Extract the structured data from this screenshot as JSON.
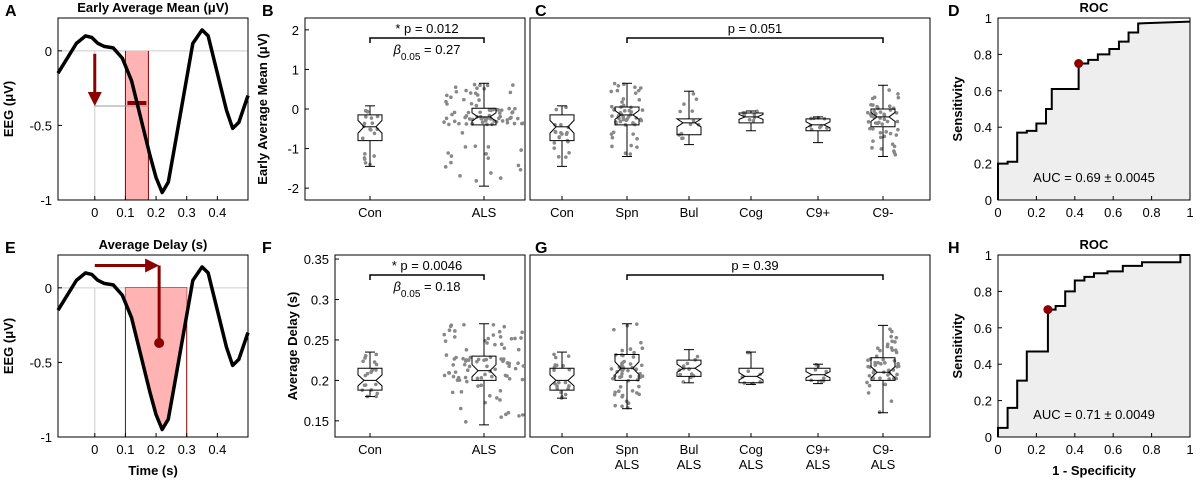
{
  "colors": {
    "wave": "#000000",
    "accent": "#8b0000",
    "fill": "#ffb3b3",
    "dots": "#888888",
    "rocFill": "#eeeeee"
  },
  "chart_data": [
    {
      "panel": "A",
      "type": "line",
      "title": "Early Average Mean (μV)",
      "ylabel": "EEG (μV)",
      "xlabel": "",
      "xlim": [
        -0.12,
        0.5
      ],
      "ylim": [
        -1,
        0.22
      ],
      "xticks": [
        "0",
        "0.1",
        "0.2",
        "0.3",
        "0.4"
      ],
      "yticks": [
        "0",
        "-0.5",
        "-1"
      ],
      "x": [
        -0.12,
        -0.09,
        -0.06,
        -0.03,
        -0.01,
        0.01,
        0.03,
        0.06,
        0.09,
        0.12,
        0.15,
        0.18,
        0.2,
        0.22,
        0.24,
        0.26,
        0.29,
        0.32,
        0.35,
        0.37,
        0.4,
        0.43,
        0.45,
        0.47,
        0.5
      ],
      "y": [
        -0.15,
        -0.05,
        0.05,
        0.1,
        0.09,
        0.05,
        0.03,
        0.02,
        -0.05,
        -0.2,
        -0.45,
        -0.7,
        -0.85,
        -0.95,
        -0.88,
        -0.65,
        -0.3,
        0.05,
        0.14,
        0.1,
        -0.15,
        -0.4,
        -0.52,
        -0.48,
        -0.3
      ],
      "window": [
        0.1,
        0.175
      ],
      "mean_level": -0.37
    },
    {
      "panel": "B",
      "type": "box",
      "ylabel": "Early Average Mean (μV)",
      "categories": [
        "Con",
        "ALS"
      ],
      "ylim": [
        -2.3,
        2.3
      ],
      "yticks": [
        "2",
        "1",
        "0",
        "-1",
        "-2"
      ],
      "boxes": [
        {
          "min": -1.45,
          "q1": -0.8,
          "med": -0.45,
          "q3": -0.15,
          "max": 0.08
        },
        {
          "min": -1.95,
          "q1": -0.4,
          "med": -0.2,
          "q3": 0.02,
          "max": 0.65
        }
      ],
      "annotation": {
        "text": "* p = 0.012",
        "beta": "β",
        "beta_sub": "0.05",
        "beta_val": " = 0.27"
      }
    },
    {
      "panel": "C",
      "type": "box",
      "categories": [
        "Con",
        "Spn",
        "Bul",
        "Cog",
        "C9+",
        "C9-"
      ],
      "ylim": [
        -2.3,
        2.3
      ],
      "boxes": [
        {
          "min": -1.45,
          "q1": -0.8,
          "med": -0.45,
          "q3": -0.15,
          "max": 0.08
        },
        {
          "min": -1.2,
          "q1": -0.4,
          "med": -0.15,
          "q3": 0.05,
          "max": 0.65
        },
        {
          "min": -0.9,
          "q1": -0.65,
          "med": -0.35,
          "q3": -0.25,
          "max": 0.45
        },
        {
          "min": -0.55,
          "q1": -0.35,
          "med": -0.2,
          "q3": -0.1,
          "max": -0.05
        },
        {
          "min": -0.85,
          "q1": -0.55,
          "med": -0.4,
          "q3": -0.25,
          "max": -0.2
        },
        {
          "min": -1.2,
          "q1": -0.45,
          "med": -0.2,
          "q3": 0.0,
          "max": 0.6
        }
      ],
      "annotation": {
        "text": "p = 0.051"
      }
    },
    {
      "panel": "D",
      "type": "line",
      "title": "ROC",
      "ylabel": "Sensitivity",
      "xlabel": "",
      "xlim": [
        0,
        1
      ],
      "ylim": [
        0,
        1
      ],
      "xticks": [
        "0",
        "0.2",
        "0.4",
        "0.6",
        "0.8",
        "1"
      ],
      "yticks": [
        "1",
        "0.8",
        "0.6",
        "0.4",
        "0.2",
        "0"
      ],
      "x": [
        0,
        0,
        0.05,
        0.05,
        0.1,
        0.1,
        0.15,
        0.15,
        0.2,
        0.2,
        0.25,
        0.25,
        0.28,
        0.28,
        0.32,
        0.32,
        0.42,
        0.42,
        0.47,
        0.47,
        0.52,
        0.52,
        0.58,
        0.58,
        0.63,
        0.63,
        0.68,
        0.68,
        0.73,
        0.73,
        1
      ],
      "y": [
        0,
        0.2,
        0.2,
        0.21,
        0.21,
        0.37,
        0.37,
        0.38,
        0.38,
        0.42,
        0.42,
        0.5,
        0.5,
        0.61,
        0.61,
        0.61,
        0.61,
        0.75,
        0.75,
        0.77,
        0.77,
        0.8,
        0.8,
        0.83,
        0.83,
        0.87,
        0.87,
        0.92,
        0.92,
        0.97,
        0.98
      ],
      "point": [
        0.42,
        0.75
      ],
      "auc": "AUC = 0.69 ± 0.0045"
    },
    {
      "panel": "E",
      "type": "line",
      "title": "Average Delay (s)",
      "ylabel": "EEG (μV)",
      "xlabel": "Time (s)",
      "xlim": [
        -0.12,
        0.5
      ],
      "ylim": [
        -1,
        0.22
      ],
      "xticks": [
        "0",
        "0.1",
        "0.2",
        "0.3",
        "0.4"
      ],
      "yticks": [
        "0",
        "-0.5",
        "-1"
      ],
      "window": [
        0.1,
        0.3
      ],
      "delay": 0.21
    },
    {
      "panel": "F",
      "type": "box",
      "ylabel": "Average Delay (s)",
      "categories": [
        "Con",
        "ALS"
      ],
      "ylim": [
        0.13,
        0.355
      ],
      "yticks": [
        "0.35",
        "0.3",
        "0.25",
        "0.2",
        "0.15"
      ],
      "boxes": [
        {
          "min": 0.18,
          "q1": 0.188,
          "med": 0.2,
          "q3": 0.215,
          "max": 0.235
        },
        {
          "min": 0.145,
          "q1": 0.2,
          "med": 0.212,
          "q3": 0.23,
          "max": 0.27
        }
      ],
      "annotation": {
        "text": "* p = 0.0046",
        "beta": "β",
        "beta_sub": "0.05",
        "beta_val": " = 0.18"
      }
    },
    {
      "panel": "G",
      "type": "box",
      "categories": [
        "Con",
        "Spn",
        "Bul",
        "Cog",
        "C9+",
        "C9-"
      ],
      "categories2": [
        "",
        "ALS",
        "ALS",
        "ALS",
        "ALS",
        "ALS"
      ],
      "ylim": [
        0.13,
        0.355
      ],
      "boxes": [
        {
          "min": 0.178,
          "q1": 0.188,
          "med": 0.2,
          "q3": 0.215,
          "max": 0.235
        },
        {
          "min": 0.165,
          "q1": 0.2,
          "med": 0.215,
          "q3": 0.232,
          "max": 0.27
        },
        {
          "min": 0.197,
          "q1": 0.205,
          "med": 0.215,
          "q3": 0.225,
          "max": 0.238
        },
        {
          "min": 0.195,
          "q1": 0.197,
          "med": 0.205,
          "q3": 0.215,
          "max": 0.235
        },
        {
          "min": 0.196,
          "q1": 0.2,
          "med": 0.207,
          "q3": 0.215,
          "max": 0.22
        },
        {
          "min": 0.16,
          "q1": 0.2,
          "med": 0.21,
          "q3": 0.228,
          "max": 0.268
        }
      ],
      "annotation": {
        "text": "p = 0.39"
      }
    },
    {
      "panel": "H",
      "type": "line",
      "title": "ROC",
      "ylabel": "Sensitivity",
      "xlabel": "1 - Specificity",
      "xlim": [
        0,
        1
      ],
      "ylim": [
        0,
        1
      ],
      "xticks": [
        "0",
        "0.2",
        "0.4",
        "0.6",
        "0.8",
        "1"
      ],
      "yticks": [
        "1",
        "0.8",
        "0.6",
        "0.4",
        "0.2",
        "0"
      ],
      "x": [
        0,
        0,
        0.05,
        0.05,
        0.1,
        0.1,
        0.15,
        0.15,
        0.2,
        0.2,
        0.26,
        0.26,
        0.3,
        0.3,
        0.35,
        0.35,
        0.4,
        0.4,
        0.45,
        0.45,
        0.5,
        0.5,
        0.57,
        0.57,
        0.65,
        0.65,
        0.75,
        0.75,
        0.95,
        0.95,
        1
      ],
      "y": [
        0,
        0.05,
        0.05,
        0.16,
        0.16,
        0.31,
        0.31,
        0.47,
        0.47,
        0.47,
        0.47,
        0.7,
        0.7,
        0.72,
        0.72,
        0.8,
        0.8,
        0.86,
        0.86,
        0.88,
        0.88,
        0.9,
        0.9,
        0.91,
        0.91,
        0.94,
        0.94,
        0.96,
        0.96,
        1,
        1
      ],
      "point": [
        0.26,
        0.7
      ],
      "auc": "AUC = 0.71 ± 0.0049"
    }
  ]
}
